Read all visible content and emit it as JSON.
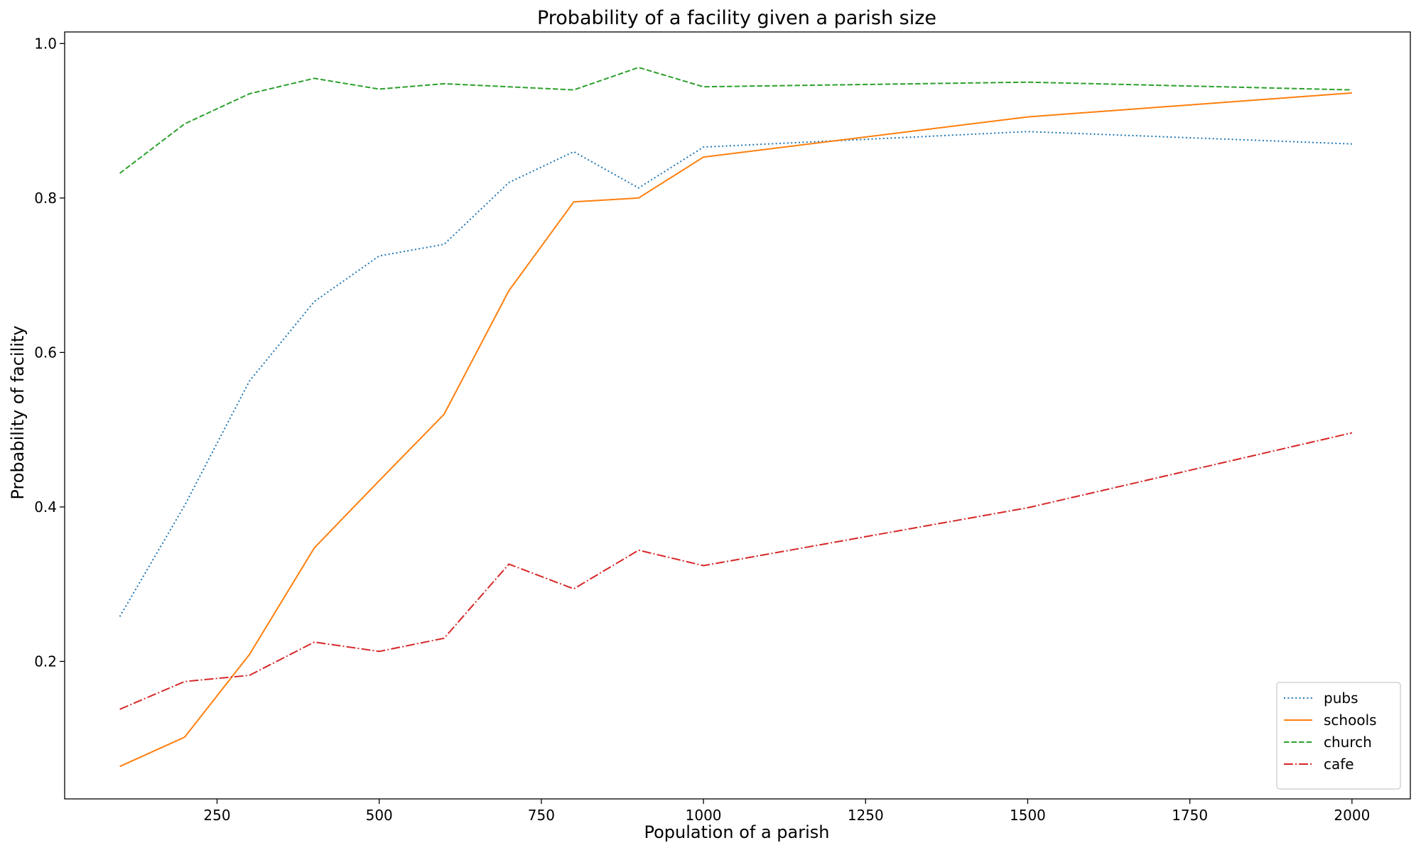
{
  "chart_data": {
    "type": "line",
    "title": "Probability of a facility given a parish size",
    "xlabel": "Population of a parish",
    "ylabel": "Probability of facility",
    "xlim": [
      15,
      2090
    ],
    "ylim": [
      0.022,
      1.015
    ],
    "x_ticks": [
      250,
      500,
      750,
      1000,
      1250,
      1500,
      1750,
      2000
    ],
    "x_tick_labels": [
      "250",
      "500",
      "750",
      "1000",
      "1250",
      "1500",
      "1750",
      "2000"
    ],
    "y_ticks": [
      0.2,
      0.4,
      0.6,
      0.8,
      1.0
    ],
    "y_tick_labels": [
      "0.2",
      "0.4",
      "0.6",
      "0.8",
      "1.0"
    ],
    "grid": false,
    "legend_position": "bottom-right",
    "x": [
      100,
      200,
      300,
      400,
      500,
      600,
      700,
      800,
      900,
      1000,
      1500,
      2000
    ],
    "series": [
      {
        "name": "pubs",
        "color": "#1f77b4",
        "dash": "dotted",
        "values": [
          0.258,
          0.402,
          0.563,
          0.666,
          0.725,
          0.74,
          0.82,
          0.86,
          0.813,
          0.866,
          0.886,
          0.87
        ]
      },
      {
        "name": "schools",
        "color": "#ff7f0e",
        "dash": "solid",
        "values": [
          0.064,
          0.102,
          0.209,
          0.347,
          0.434,
          0.52,
          0.68,
          0.795,
          0.8,
          0.853,
          0.905,
          0.936
        ]
      },
      {
        "name": "church",
        "color": "#2ca02c",
        "dash": "dashed",
        "values": [
          0.832,
          0.896,
          0.935,
          0.955,
          0.941,
          0.948,
          0.944,
          0.94,
          0.969,
          0.944,
          0.95,
          0.94
        ]
      },
      {
        "name": "cafe",
        "color": "#d62728",
        "dash": "dashdot",
        "values": [
          0.138,
          0.174,
          0.182,
          0.225,
          0.213,
          0.23,
          0.326,
          0.294,
          0.344,
          0.324,
          0.399,
          0.496
        ]
      }
    ]
  }
}
